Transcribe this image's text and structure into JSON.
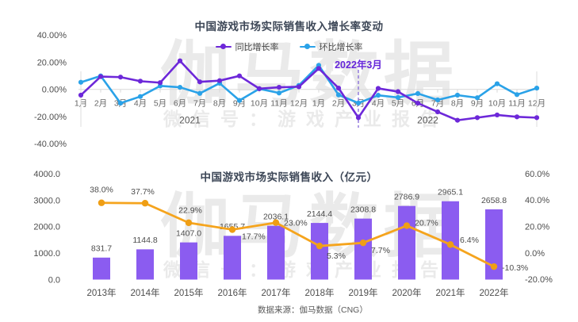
{
  "watermark": {
    "brand": "伽马数据",
    "wechat": "微信号：游戏产业报告"
  },
  "source_note": "数据来源：伽马数据（CNG）",
  "chart_data": [
    {
      "type": "line",
      "title": "中国游戏市场实际销售收入增长率变动",
      "legend_position": "top",
      "grid": "zero-line-only",
      "month_labels": [
        "1月",
        "2月",
        "3月",
        "4月",
        "5月",
        "6月",
        "7月",
        "8月",
        "9月",
        "10月",
        "11月",
        "12月",
        "1月",
        "2月",
        "3月",
        "4月",
        "5月",
        "6月",
        "7月",
        "8月",
        "9月",
        "10月",
        "11月",
        "12月"
      ],
      "year_labels": [
        "2021",
        "2022"
      ],
      "yticks": [
        "40.00%",
        "20.00%",
        "0.00%",
        "-20.00%",
        "-40.00%"
      ],
      "ytick_values": [
        40,
        20,
        0,
        -20,
        -40
      ],
      "ylim": [
        -40,
        40
      ],
      "annotation": {
        "label": "2022年3月",
        "month_index": 14
      },
      "series": [
        {
          "name": "同比增长率",
          "color": "#6d28d9",
          "values": [
            -4.2,
            9.5,
            9.1,
            6.1,
            5.0,
            21.1,
            5.6,
            6.5,
            10.0,
            0.6,
            1.6,
            2.0,
            15.5,
            1.0,
            -20.8,
            0.8,
            -1.6,
            -10.1,
            -16.5,
            -22.7,
            -20.8,
            -18.8,
            -20.2,
            -20.8
          ]
        },
        {
          "name": "环比增长率",
          "color": "#2aa2e8",
          "values": [
            5.3,
            10.0,
            -10.1,
            -5.2,
            2.6,
            1.6,
            -2.9,
            4.6,
            -8.1,
            0.5,
            -2.6,
            3.0,
            17.8,
            -4.0,
            -10.0,
            -4.3,
            -5.9,
            -3.0,
            -7.7,
            -4.2,
            -6.1,
            4.2,
            -3.8,
            1.0
          ]
        }
      ]
    },
    {
      "type": "bar+line",
      "title": "中国游戏市场实际销售收入（亿元）",
      "categories": [
        "2013年",
        "2014年",
        "2015年",
        "2016年",
        "2017年",
        "2018年",
        "2019年",
        "2020年",
        "2021年",
        "2022年"
      ],
      "bar_series": {
        "color": "#8b5cf0",
        "values": [
          831.7,
          1144.8,
          1407.0,
          1655.7,
          2036.1,
          2144.4,
          2308.8,
          2786.9,
          2965.1,
          2658.8
        ]
      },
      "line_series": {
        "color": "#f5a41d",
        "marker_color": "#ef9e14",
        "values": [
          38.0,
          37.7,
          22.9,
          17.7,
          23.0,
          5.3,
          7.7,
          20.7,
          6.4,
          -10.3
        ]
      },
      "left_axis": {
        "ticks": [
          "4000.0",
          "3000.0",
          "2000.0",
          "1000.0",
          "0.0"
        ],
        "values": [
          4000,
          3000,
          2000,
          1000,
          0
        ],
        "lim": [
          0,
          4000
        ]
      },
      "right_axis": {
        "ticks": [
          "60.0%",
          "40.0%",
          "20.0%",
          "0.0%",
          "-20.0%"
        ],
        "values": [
          60,
          40,
          20,
          0,
          -20
        ],
        "lim": [
          -20,
          60
        ]
      }
    }
  ]
}
